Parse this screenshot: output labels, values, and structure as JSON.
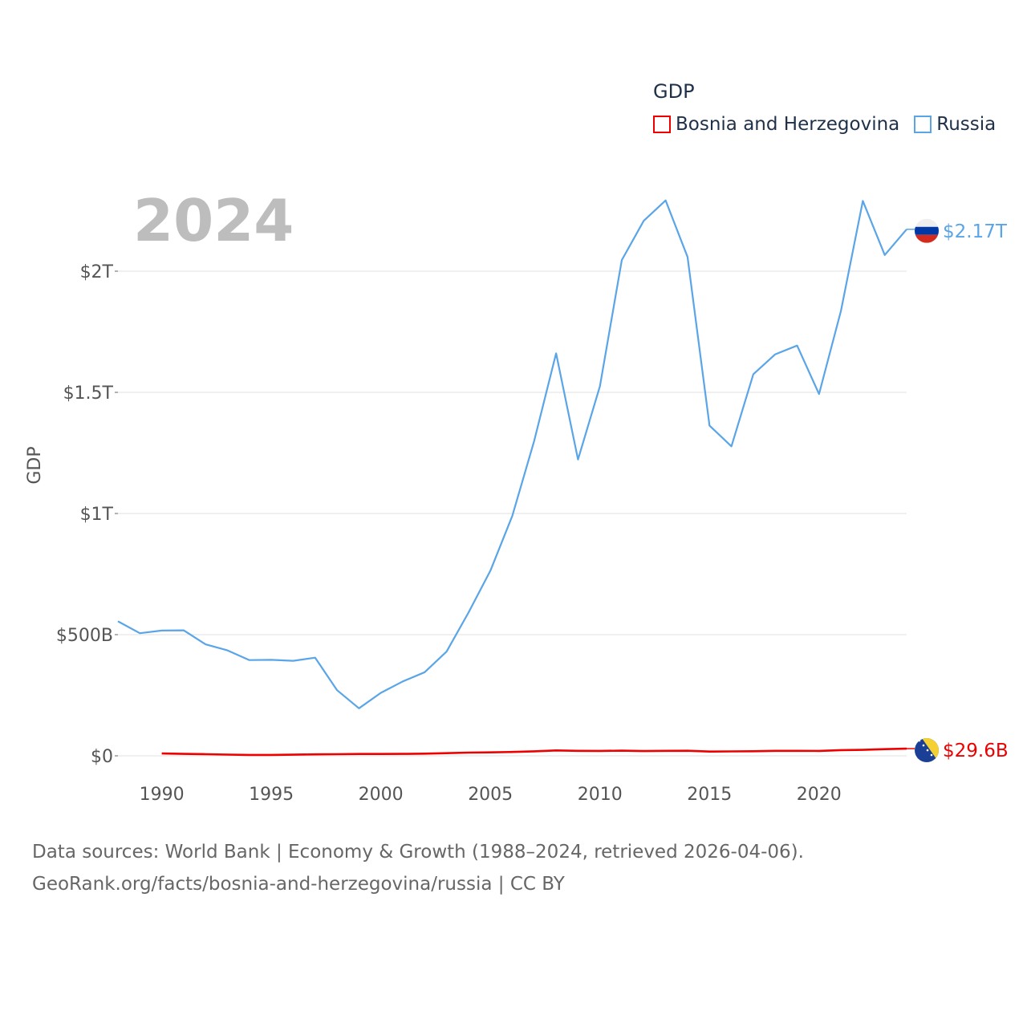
{
  "legend": {
    "title": "GDP",
    "items": [
      {
        "label": "Bosnia and Herzegovina",
        "color": "#ee0000"
      },
      {
        "label": "Russia",
        "color": "#5aa5e8"
      }
    ]
  },
  "year_label": "2024",
  "footer": {
    "line1": "Data sources: World Bank | Economy & Growth (1988–2024, retrieved 2026-04-06).",
    "line2": "GeoRank.org/facts/bosnia-and-herzegovina/russia | CC BY"
  },
  "chart_data": {
    "type": "line",
    "title": "GDP",
    "xlabel": "",
    "ylabel": "GDP",
    "xlim": [
      1988,
      2024
    ],
    "ylim": [
      0,
      2300
    ],
    "y_unit": "billion USD",
    "x_ticks": [
      1990,
      1995,
      2000,
      2005,
      2010,
      2015,
      2020
    ],
    "y_ticks": [
      {
        "value": 0,
        "label": "$0"
      },
      {
        "value": 500,
        "label": "$500B"
      },
      {
        "value": 1000,
        "label": "$1T"
      },
      {
        "value": 1500,
        "label": "$1.5T"
      },
      {
        "value": 2000,
        "label": "$2T"
      }
    ],
    "grid": true,
    "legend_position": "top-right",
    "series": [
      {
        "name": "Russia",
        "color": "#5aa5e8",
        "end_label": "$2.17T",
        "x": [
          1988,
          1989,
          1990,
          1991,
          1992,
          1993,
          1994,
          1995,
          1996,
          1997,
          1998,
          1999,
          2000,
          2001,
          2002,
          2003,
          2004,
          2005,
          2006,
          2007,
          2008,
          2009,
          2010,
          2011,
          2012,
          2013,
          2014,
          2015,
          2016,
          2017,
          2018,
          2019,
          2020,
          2021,
          2022,
          2023,
          2024
        ],
        "values": [
          555,
          506,
          517,
          518,
          460,
          435,
          395,
          396,
          392,
          405,
          271,
          196,
          260,
          307,
          345,
          430,
          591,
          764,
          990,
          1300,
          1661,
          1223,
          1525,
          2046,
          2208,
          2292,
          2059,
          1363,
          1277,
          1575,
          1657,
          1693,
          1493,
          1836,
          2290,
          2067,
          2173
        ]
      },
      {
        "name": "Bosnia and Herzegovina",
        "color": "#ee0000",
        "end_label": "$29.6B",
        "x": [
          1990,
          1991,
          1992,
          1993,
          1994,
          1995,
          1996,
          1997,
          1998,
          1999,
          2000,
          2001,
          2002,
          2003,
          2004,
          2005,
          2006,
          2007,
          2008,
          2009,
          2010,
          2011,
          2012,
          2013,
          2014,
          2015,
          2016,
          2017,
          2018,
          2019,
          2020,
          2021,
          2022,
          2023,
          2024
        ],
        "values": [
          9.5,
          8,
          6.5,
          5,
          3.5,
          3.6,
          4.7,
          5.8,
          6.6,
          7.6,
          7.6,
          8.0,
          8.9,
          10.9,
          13.1,
          14.1,
          15.8,
          18.7,
          22.1,
          20.4,
          20.2,
          21.1,
          19.4,
          20.5,
          20.7,
          17.6,
          18.2,
          19.0,
          20.5,
          20.6,
          20.2,
          23.6,
          24.5,
          27.6,
          29.6
        ]
      }
    ]
  }
}
